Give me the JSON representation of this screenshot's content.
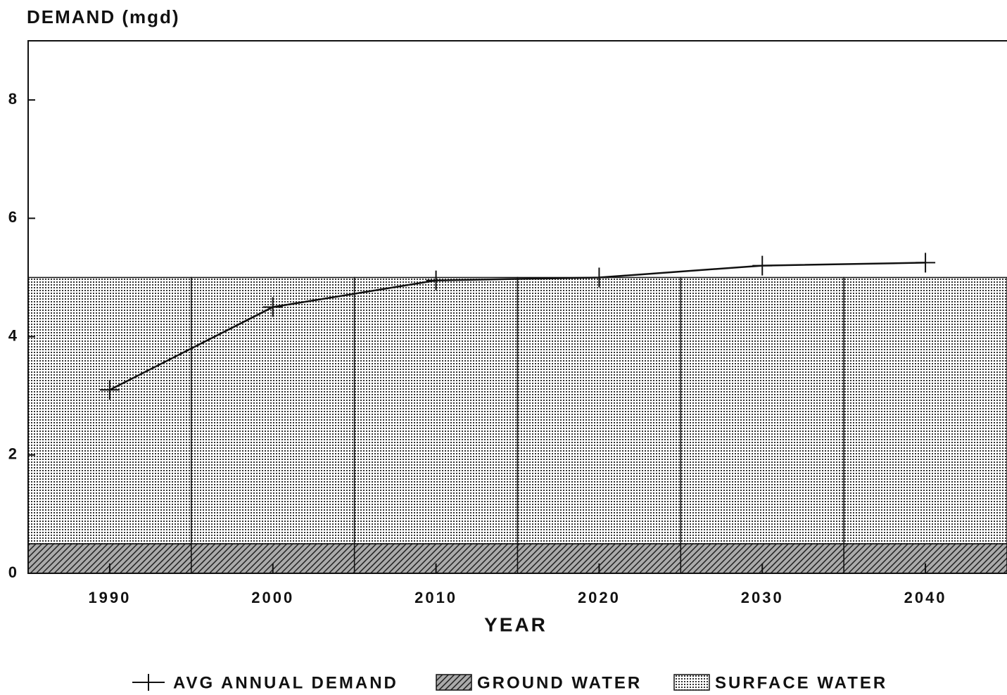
{
  "chart_data": {
    "type": "bar_line",
    "title": "DEMAND (mgd)",
    "x_label": "YEAR",
    "x": [
      1990,
      2000,
      2010,
      2020,
      2030,
      2040
    ],
    "bar_width": 10,
    "xlim": [
      1985,
      2045
    ],
    "xticks": [
      1990,
      2000,
      2010,
      2020,
      2030,
      2040
    ],
    "ylim": [
      0,
      9
    ],
    "yticks": [
      0,
      2,
      4,
      6,
      8
    ],
    "stacked": true,
    "series": [
      {
        "name": "AVG ANNUAL DEMAND",
        "kind": "line",
        "color": "#111111",
        "values": [
          3.1,
          4.5,
          4.95,
          5.0,
          5.2,
          5.25
        ]
      },
      {
        "name": "GROUND WATER",
        "kind": "bar",
        "color": "#333333",
        "pattern": "hatch",
        "values": [
          0.5,
          0.5,
          0.5,
          0.5,
          0.5,
          0.5
        ]
      },
      {
        "name": "SURFACE WATER",
        "kind": "bar",
        "color": "#333333",
        "pattern": "dots",
        "values": [
          4.5,
          4.5,
          4.5,
          4.5,
          4.5,
          4.5
        ]
      }
    ],
    "legend": "bottom"
  }
}
